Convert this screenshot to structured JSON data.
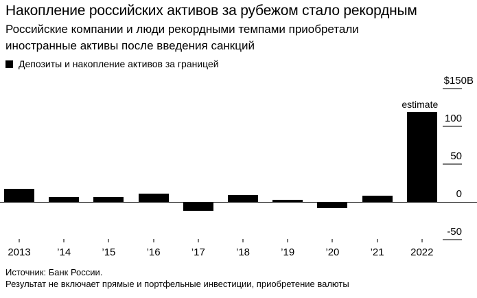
{
  "header": {
    "title": "Накопление российских активов за рубежом стало рекордным",
    "subtitle": "Российские компании и люди рекордными темпами приобретали иностранные активы после введения санкций"
  },
  "legend": {
    "label": "Депозиты и накопление активов за границей",
    "marker_color": "#000000"
  },
  "chart_data": {
    "type": "bar",
    "title": "Накопление российских активов за рубежом стало рекордным",
    "categories": [
      "2013",
      "’14",
      "’15",
      "’16",
      "’17",
      "’18",
      "’19",
      "’20",
      "’21",
      "2022"
    ],
    "values": [
      17,
      6,
      6,
      11,
      -11,
      9,
      3,
      -7,
      8,
      119
    ],
    "series_name": "Депозиты и накопление активов за границей",
    "bar_color": "#000000",
    "tick_color": "#777777",
    "xlabel": "",
    "ylabel": "",
    "ylim": [
      -50,
      150
    ],
    "grid": false,
    "axis_side": "right",
    "legend_position": "top-left",
    "y_axis": {
      "ticks": [
        {
          "label": "$150B",
          "value": 150
        },
        {
          "label": "100",
          "value": 100
        },
        {
          "label": "50",
          "value": 50
        },
        {
          "label": "0",
          "value": 0
        },
        {
          "label": "-50",
          "value": -50
        }
      ]
    },
    "annotation": {
      "text": "estimate",
      "category": "2022"
    }
  },
  "footer": {
    "source": "Источник: Банк России.",
    "note": "Результат не включает прямые и портфельные инвестиции, приобретение валюты"
  }
}
